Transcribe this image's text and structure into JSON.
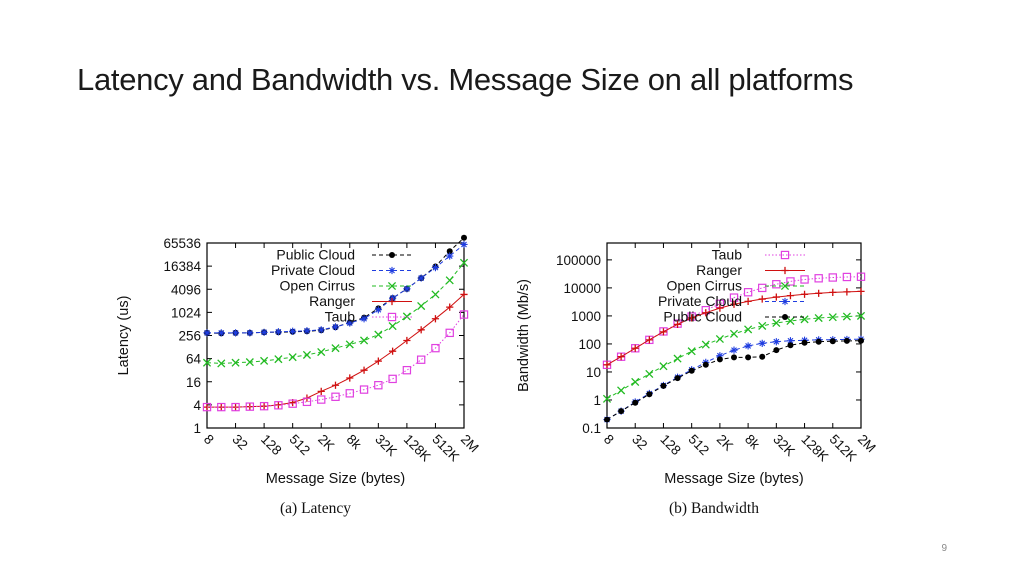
{
  "slide": {
    "title": "Latency and Bandwidth vs. Message Size on all platforms",
    "page_number": "9"
  },
  "chart_data": [
    {
      "type": "line",
      "id": "latency",
      "caption": "(a) Latency",
      "xlabel": "Message Size (bytes)",
      "ylabel": "Latency (us)",
      "x_tick_labels": [
        "8",
        "32",
        "128",
        "512",
        "2K",
        "8k",
        "32K",
        "128K",
        "512K",
        "2M"
      ],
      "x": [
        8,
        16,
        32,
        64,
        128,
        256,
        512,
        1024,
        2048,
        4096,
        8192,
        16384,
        32768,
        65536,
        131072,
        262144,
        524288,
        1048576,
        2097152
      ],
      "y_scale": "log2",
      "ylim": [
        1,
        65536
      ],
      "y_ticks": [
        1,
        4,
        16,
        64,
        256,
        1024,
        4096,
        16384,
        65536
      ],
      "y_tick_labels": [
        "1",
        "4",
        "16",
        "64",
        "256",
        "1024",
        "4096",
        "16384",
        "65536"
      ],
      "legend_position": "top-left",
      "series": [
        {
          "name": "Public Cloud",
          "color": "#000000",
          "marker": "dot",
          "line": "dashed",
          "values": [
            300,
            290,
            300,
            300,
            310,
            310,
            320,
            330,
            350,
            420,
            560,
            750,
            1300,
            2400,
            4200,
            8000,
            16000,
            40000,
            90000
          ]
        },
        {
          "name": "Private Cloud",
          "color": "#1f3de0",
          "marker": "asterisk",
          "line": "dashed",
          "values": [
            300,
            300,
            300,
            300,
            310,
            320,
            330,
            340,
            360,
            430,
            540,
            700,
            1200,
            2400,
            4200,
            8000,
            15000,
            30000,
            60000
          ]
        },
        {
          "name": "Open Cirrus",
          "color": "#22bb22",
          "marker": "x",
          "line": "dashed",
          "values": [
            50,
            48,
            50,
            52,
            56,
            62,
            70,
            80,
            95,
            120,
            150,
            190,
            270,
            450,
            800,
            1500,
            3000,
            7000,
            20000
          ]
        },
        {
          "name": "Ranger",
          "color": "#d01010",
          "marker": "plus",
          "line": "solid",
          "values": [
            3.5,
            3.5,
            3.5,
            3.6,
            3.7,
            4.0,
            4.6,
            6.0,
            9.0,
            13,
            20,
            32,
            55,
            100,
            190,
            360,
            700,
            1400,
            3000
          ]
        },
        {
          "name": "Taub",
          "color": "#e040e0",
          "marker": "square",
          "line": "dotted",
          "values": [
            3.5,
            3.5,
            3.5,
            3.6,
            3.7,
            3.9,
            4.3,
            4.8,
            5.5,
            6.5,
            8.0,
            10,
            13,
            19,
            32,
            60,
            120,
            300,
            900
          ]
        }
      ]
    },
    {
      "type": "line",
      "id": "bandwidth",
      "caption": "(b) Bandwidth",
      "xlabel": "Message Size (bytes)",
      "ylabel": "Bandwidth (Mb/s)",
      "x_tick_labels": [
        "8",
        "32",
        "128",
        "512",
        "2K",
        "8k",
        "32K",
        "128K",
        "512K",
        "2M"
      ],
      "x": [
        8,
        16,
        32,
        64,
        128,
        256,
        512,
        1024,
        2048,
        4096,
        8192,
        16384,
        32768,
        65536,
        131072,
        262144,
        524288,
        1048576,
        2097152
      ],
      "y_scale": "log10",
      "ylim": [
        0.1,
        400000
      ],
      "y_ticks": [
        0.1,
        1,
        10,
        100,
        1000,
        10000,
        100000
      ],
      "y_tick_labels": [
        "0.1",
        "1",
        "10",
        "100",
        "1000",
        "10000",
        "100000"
      ],
      "legend_position": "top-right",
      "series": [
        {
          "name": "Taub",
          "color": "#e040e0",
          "marker": "square",
          "line": "dotted",
          "values": [
            18,
            35,
            70,
            140,
            280,
            530,
            950,
            1600,
            2700,
            4500,
            7000,
            10000,
            13500,
            17000,
            20000,
            22000,
            23500,
            24500,
            25000
          ]
        },
        {
          "name": "Ranger",
          "color": "#d01010",
          "marker": "plus",
          "line": "solid",
          "values": [
            18,
            35,
            70,
            140,
            270,
            500,
            850,
            1300,
            1900,
            2600,
            3300,
            4000,
            4700,
            5300,
            5900,
            6400,
            6900,
            7200,
            7500
          ]
        },
        {
          "name": "Open Cirrus",
          "color": "#22bb22",
          "marker": "x",
          "line": "dashed",
          "values": [
            1.1,
            2.2,
            4.4,
            8.5,
            16,
            30,
            55,
            95,
            150,
            230,
            330,
            440,
            560,
            660,
            760,
            840,
            900,
            950,
            1000
          ]
        },
        {
          "name": "Private Cloud",
          "color": "#1f3de0",
          "marker": "asterisk",
          "line": "dashed",
          "values": [
            0.2,
            0.4,
            0.85,
            1.7,
            3.3,
            6.5,
            12,
            22,
            38,
            60,
            85,
            105,
            120,
            130,
            135,
            140,
            142,
            145,
            148
          ]
        },
        {
          "name": "Public Cloud",
          "color": "#000000",
          "marker": "dot",
          "line": "dashed",
          "values": [
            0.2,
            0.4,
            0.8,
            1.6,
            3.2,
            6.0,
            11,
            18,
            28,
            33,
            33,
            35,
            60,
            90,
            110,
            120,
            125,
            128,
            130
          ]
        }
      ]
    }
  ]
}
